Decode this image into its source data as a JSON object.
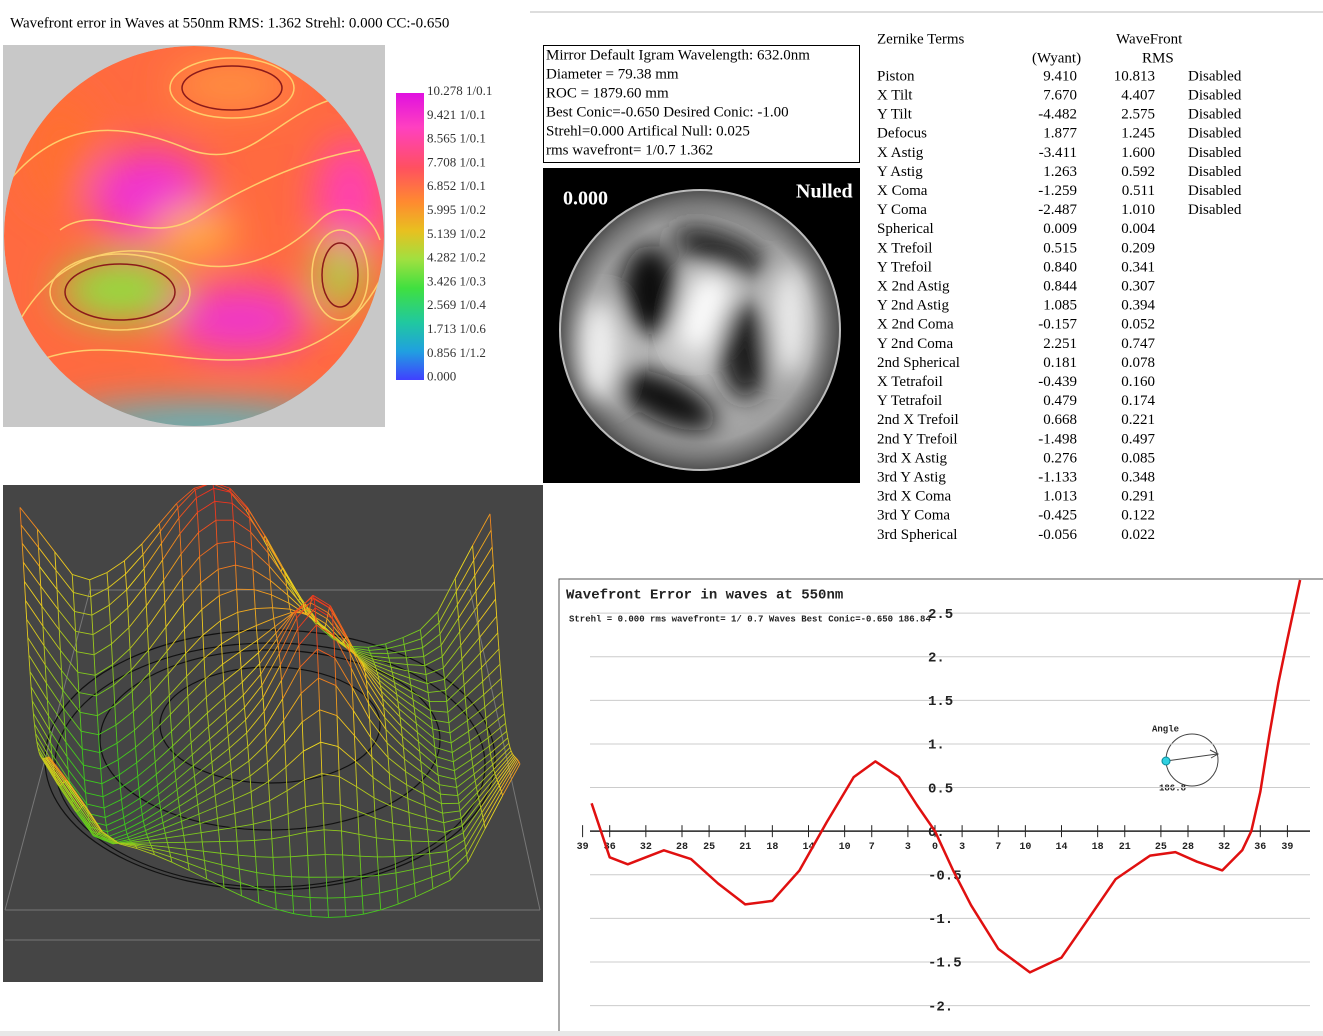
{
  "header": {
    "title": "Wavefront error in Waves at 550nm  RMS: 1.362 Strehl: 0.000 CC:-0.650"
  },
  "contour_map": {
    "colorbar_labels": [
      "10.278 1/0.1",
      "9.421 1/0.1",
      "8.565 1/0.1",
      "7.708 1/0.1",
      "6.852 1/0.1",
      "5.995 1/0.2",
      "5.139 1/0.2",
      "4.282 1/0.2",
      "3.426 1/0.3",
      "2.569 1/0.4",
      "1.713 1/0.6",
      "0.856 1/1.2",
      "0.000"
    ]
  },
  "info_box": {
    "lines": [
      "Mirror Default Igram Wavelength: 632.0nm",
      "Diameter =  79.38 mm",
      "ROC = 1879.60 mm",
      "Best Conic=-0.650 Desired Conic: -1.00",
      " Strehl=0.000  Artifical Null: 0.025",
      "rms wavefront= 1/0.7  1.362"
    ]
  },
  "interferogram": {
    "value_label": "0.000",
    "mode_label": "Nulled"
  },
  "zernike_table": {
    "header_top": [
      "Zernike Terms",
      "WaveFront"
    ],
    "header_bottom": [
      "(Wyant)",
      "RMS"
    ],
    "rows": [
      [
        "Piston",
        "9.410",
        "10.813",
        "Disabled"
      ],
      [
        "X Tilt",
        "7.670",
        "4.407",
        "Disabled"
      ],
      [
        "Y Tilt",
        "-4.482",
        "2.575",
        "Disabled"
      ],
      [
        "Defocus",
        "1.877",
        "1.245",
        "Disabled"
      ],
      [
        "X Astig",
        "-3.411",
        "1.600",
        "Disabled"
      ],
      [
        "Y Astig",
        "1.263",
        "0.592",
        "Disabled"
      ],
      [
        "X Coma",
        "-1.259",
        "0.511",
        "Disabled"
      ],
      [
        "Y Coma",
        "-2.487",
        "1.010",
        "Disabled"
      ],
      [
        "Spherical",
        "0.009",
        "0.004"
      ],
      [
        "X Trefoil",
        "0.515",
        "0.209"
      ],
      [
        "Y Trefoil",
        "0.840",
        "0.341"
      ],
      [
        "X 2nd Astig",
        "0.844",
        "0.307"
      ],
      [
        "Y 2nd Astig",
        "1.085",
        "0.394"
      ],
      [
        "X 2nd Coma",
        "-0.157",
        "0.052"
      ],
      [
        "Y 2nd Coma",
        "2.251",
        "0.747"
      ],
      [
        "2nd Spherical",
        "0.181",
        "0.078"
      ],
      [
        "X Tetrafoil",
        "-0.439",
        "0.160"
      ],
      [
        "Y Tetrafoil",
        "0.479",
        "0.174"
      ],
      [
        "2nd X Trefoil",
        "0.668",
        "0.221"
      ],
      [
        "2nd Y Trefoil",
        "-1.498",
        "0.497"
      ],
      [
        "3rd X Astig",
        "0.276",
        "0.085"
      ],
      [
        "3rd Y Astig",
        "-1.133",
        "0.348"
      ],
      [
        "3rd X Coma",
        "1.013",
        "0.291"
      ],
      [
        "3rd Y Coma",
        "-0.425",
        "0.122"
      ],
      [
        "3rd Spherical",
        "-0.056",
        "0.022"
      ]
    ]
  },
  "chart_data": {
    "type": "line",
    "title": "Wavefront Error in waves at 550nm",
    "subtitle": "Strehl = 0.000 rms wavefront= 1/ 0.7 Waves Best Conic=-0.650 186.84",
    "x": [
      -38,
      -36,
      -34,
      -32,
      -30,
      -27,
      -24,
      -21,
      -18,
      -15,
      -12,
      -9,
      -6.6,
      -4,
      -2,
      0,
      2,
      4,
      7,
      10.5,
      14,
      17,
      20,
      23.8,
      26.6,
      29,
      31.8,
      34,
      35,
      36,
      37,
      38,
      39,
      40.4
    ],
    "values": [
      0.32,
      -0.3,
      -0.38,
      -0.3,
      -0.22,
      -0.32,
      -0.6,
      -0.84,
      -0.8,
      -0.45,
      0.1,
      0.62,
      0.8,
      0.62,
      0.3,
      0.0,
      -0.45,
      -0.85,
      -1.35,
      -1.62,
      -1.45,
      -1.0,
      -0.55,
      -0.28,
      -0.24,
      -0.35,
      -0.45,
      -0.22,
      0.0,
      0.45,
      1.1,
      1.7,
      2.2,
      2.88
    ],
    "color": "#e01010",
    "xlim": [
      -41.5,
      41.5
    ],
    "ylim": [
      -2.28,
      2.88
    ],
    "xticks": [
      {
        "value": -39,
        "label": "39"
      },
      {
        "value": -36,
        "label": "36"
      },
      {
        "value": -32,
        "label": "32"
      },
      {
        "value": -28,
        "label": "28"
      },
      {
        "value": -25,
        "label": "25"
      },
      {
        "value": -21,
        "label": "21"
      },
      {
        "value": -18,
        "label": "18"
      },
      {
        "value": -14,
        "label": "14"
      },
      {
        "value": -10,
        "label": "10"
      },
      {
        "value": -7,
        "label": "7"
      },
      {
        "value": -3,
        "label": "3"
      },
      0,
      3,
      7,
      10,
      14,
      18,
      21,
      25,
      28,
      32,
      36,
      39
    ],
    "yticks": [
      2.5,
      {
        "value": 2,
        "label": "2."
      },
      1.5,
      {
        "value": 1,
        "label": "1."
      },
      0.5,
      {
        "value": 0,
        "label": "0."
      },
      -0.5,
      {
        "value": -1,
        "label": "-1."
      },
      -1.5,
      {
        "value": -2,
        "label": "-2."
      }
    ],
    "grid": true,
    "angle_label": "Angle",
    "angle_value": "186.8"
  }
}
